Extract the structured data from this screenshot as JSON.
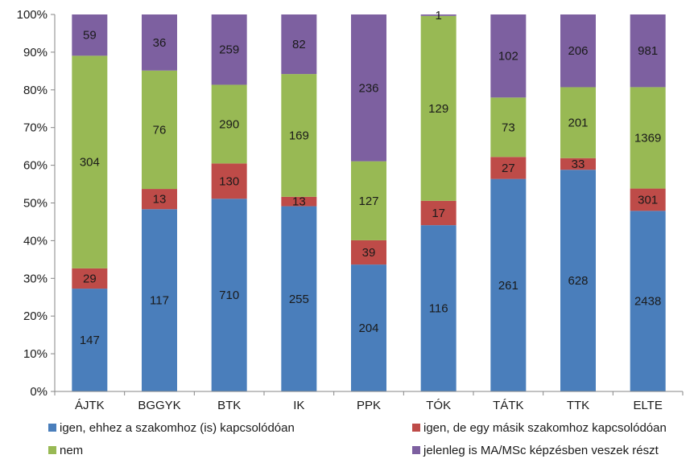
{
  "chart_data": {
    "type": "bar",
    "stacked": "percent",
    "categories": [
      "ÁJTK",
      "BGGYK",
      "BTK",
      "IK",
      "PPK",
      "TÓK",
      "TÁTK",
      "TTK",
      "ELTE"
    ],
    "series": [
      {
        "name": "igen, ehhez a szakomhoz (is) kapcsolódóan",
        "color": "#4a7ebb",
        "values": [
          147,
          117,
          710,
          255,
          204,
          116,
          261,
          628,
          2438
        ]
      },
      {
        "name": "igen, de egy másik szakomhoz kapcsolódóan",
        "color": "#be4b48",
        "values": [
          29,
          13,
          130,
          13,
          39,
          17,
          27,
          33,
          301
        ]
      },
      {
        "name": "nem",
        "color": "#98b954",
        "values": [
          304,
          76,
          290,
          169,
          127,
          129,
          73,
          201,
          1369
        ]
      },
      {
        "name": "jelenleg is MA/MSc képzésben veszek részt",
        "color": "#7d60a0",
        "values": [
          59,
          36,
          259,
          82,
          236,
          1,
          102,
          206,
          981
        ]
      }
    ],
    "y_ticks": [
      "0%",
      "10%",
      "20%",
      "30%",
      "40%",
      "50%",
      "60%",
      "70%",
      "80%",
      "90%",
      "100%"
    ],
    "ylim": [
      0,
      100
    ],
    "grid": false,
    "legend_position": "bottom"
  }
}
